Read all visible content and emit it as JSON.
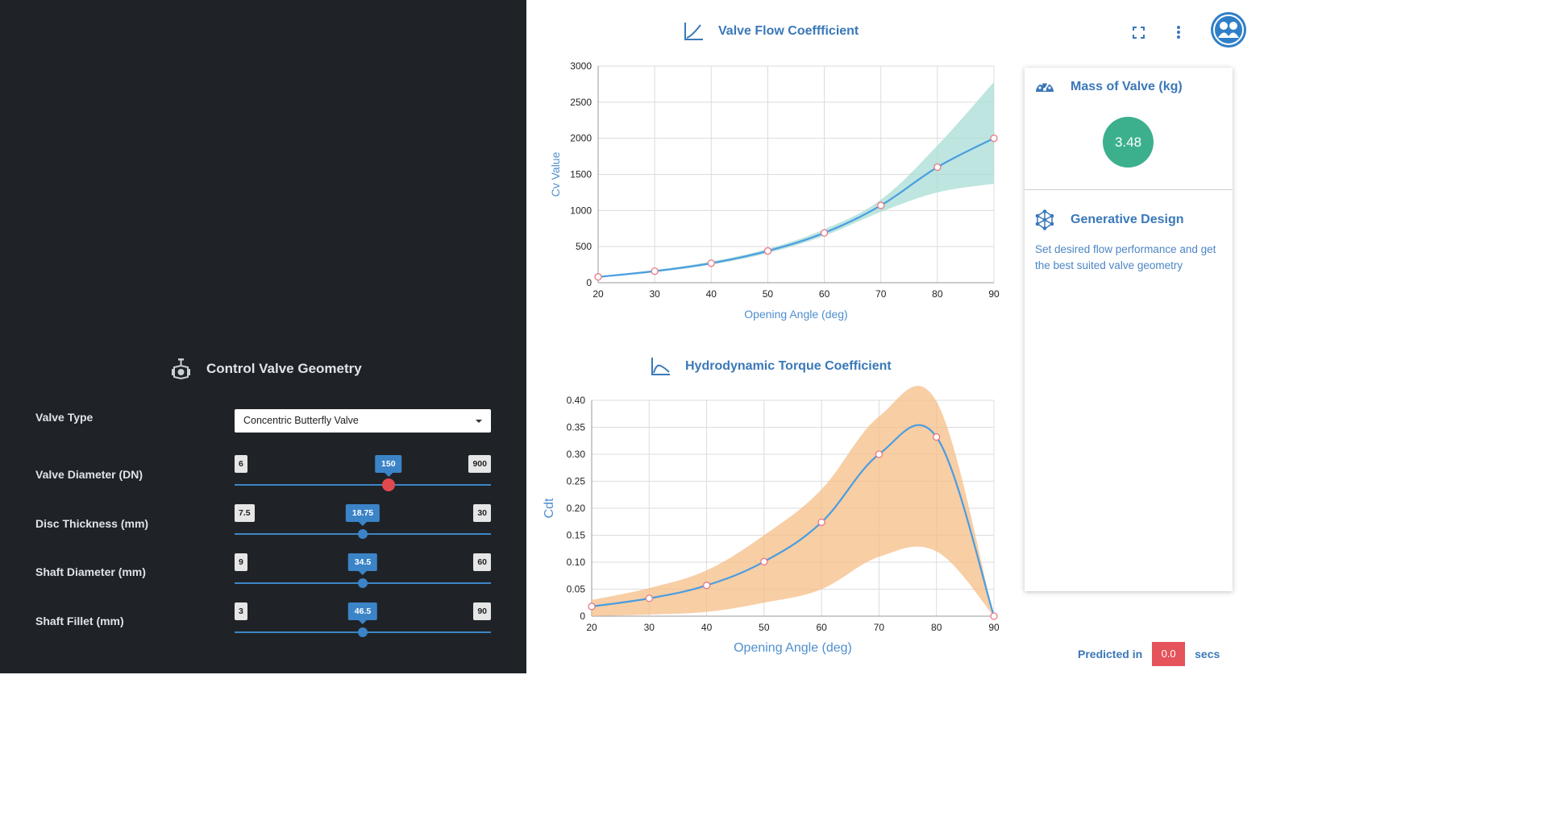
{
  "geometry": {
    "title": "Control Valve Geometry",
    "valve_type": {
      "label": "Valve Type",
      "value": "Concentric Butterfly Valve"
    },
    "sliders": [
      {
        "label": "Valve Diameter (DN)",
        "min": "6",
        "max": "900",
        "value": "150",
        "fraction": 0.6
      },
      {
        "label": "Disc Thickness (mm)",
        "min": "7.5",
        "max": "30",
        "value": "18.75",
        "fraction": 0.5
      },
      {
        "label": "Shaft Diameter (mm)",
        "min": "9",
        "max": "60",
        "value": "34.5",
        "fraction": 0.5
      },
      {
        "label": "Shaft Fillet (mm)",
        "min": "3",
        "max": "90",
        "value": "46.5",
        "fraction": 0.5
      }
    ]
  },
  "header_icons": [
    "fullscreen-icon",
    "more-vert-icon",
    "avatar"
  ],
  "chart_data": [
    {
      "type": "line",
      "title": "Valve Flow Coeffficient",
      "xlabel": "Opening Angle (deg)",
      "ylabel": "Cv Value",
      "xlim": [
        20,
        90
      ],
      "ylim": [
        0,
        3000
      ],
      "xticks": [
        "20",
        "30",
        "40",
        "50",
        "60",
        "70",
        "80",
        "90"
      ],
      "yticks": [
        "0",
        "500",
        "1000",
        "1500",
        "2000",
        "2500",
        "3000"
      ],
      "grid": true,
      "series": [
        {
          "x": [
            20,
            30,
            40,
            50,
            60,
            70,
            80,
            90
          ],
          "values": [
            80,
            160,
            270,
            440,
            690,
            1070,
            1600,
            2000
          ],
          "band_lower": [
            70,
            145,
            250,
            410,
            650,
            980,
            1250,
            1370
          ],
          "band_upper": [
            90,
            175,
            295,
            470,
            740,
            1150,
            1900,
            2780
          ],
          "color": "#4a9de0",
          "band_color": "#a8dcd6"
        }
      ]
    },
    {
      "type": "line",
      "title": "Hydrodynamic Torque Coefficient",
      "xlabel": "Opening Angle (deg)",
      "ylabel": "Cdt",
      "xlim": [
        20,
        90
      ],
      "ylim": [
        0,
        0.4
      ],
      "xticks": [
        "20",
        "30",
        "40",
        "50",
        "60",
        "70",
        "80",
        "90"
      ],
      "yticks": [
        "0",
        "0.05",
        "0.10",
        "0.15",
        "0.20",
        "0.25",
        "0.30",
        "0.35",
        "0.40"
      ],
      "grid": true,
      "series": [
        {
          "x": [
            20,
            30,
            40,
            50,
            60,
            70,
            80,
            90
          ],
          "values": [
            0.018,
            0.033,
            0.057,
            0.101,
            0.174,
            0.3,
            0.332,
            0.0
          ],
          "band_lower": [
            0.0,
            0.003,
            0.008,
            0.025,
            0.05,
            0.11,
            0.12,
            0.0
          ],
          "band_upper": [
            0.03,
            0.052,
            0.085,
            0.15,
            0.235,
            0.37,
            0.398,
            0.0
          ],
          "color": "#4a9de0",
          "band_color": "#f6bd87"
        }
      ]
    }
  ],
  "mass": {
    "title": "Mass of Valve (kg)",
    "value": "3.48"
  },
  "generative": {
    "title": "Generative Design",
    "description": "Set desired flow performance and get the best suited valve geometry"
  },
  "prediction": {
    "prefix": "Predicted in",
    "value": "0.0",
    "suffix": "secs"
  },
  "colors": {
    "accent": "#3a78b8",
    "dark_panel": "#1f2327",
    "mass_badge": "#3cb08d",
    "prediction_badge": "#e5535b"
  }
}
